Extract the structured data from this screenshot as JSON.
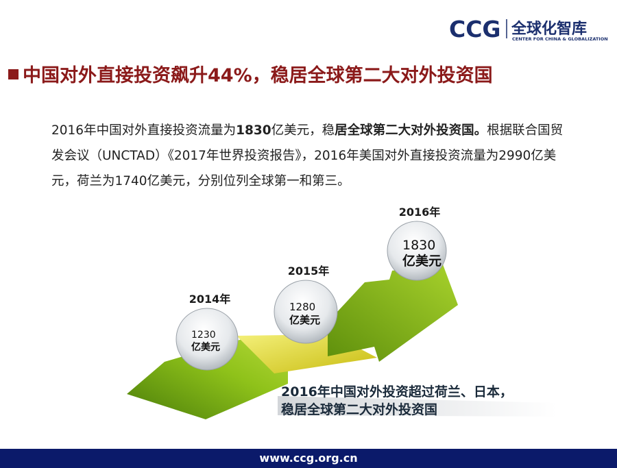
{
  "header": {
    "logo": "CCG",
    "logo_cn": "全球化智库",
    "logo_en": "CENTER FOR CHINA & GLOBALIZATION"
  },
  "title": "中国对外直接投资飙升44%，稳居全球第二大对外投资国",
  "body": [
    {
      "text": "2016年中国对外直接投资流量为",
      "bold": false
    },
    {
      "text": "1830",
      "bold": true
    },
    {
      "text": "亿美元，稳",
      "bold": false
    },
    {
      "text": "居全球第二大对外投资国。",
      "bold": true
    },
    {
      "text": "根据联合国贸发会议（UNCTAD）《2017年世界投资报告》，2016年美国对外直接投资流量为2990亿美元，荷兰为1740亿美元，分别位列全球第一和第三。",
      "bold": false
    }
  ],
  "milestones": [
    {
      "year": "2014年",
      "amount": 1230,
      "unit": "亿美元"
    },
    {
      "year": "2015年",
      "amount": 1280,
      "unit": "亿美元"
    },
    {
      "year": "2016年",
      "amount": 1830,
      "unit": "亿美元"
    }
  ],
  "caption": [
    "2016年中国对外投资超过荷兰、日本，",
    "稳居全球第二大对外投资国"
  ],
  "footer": "www.ccg.org.cn"
}
